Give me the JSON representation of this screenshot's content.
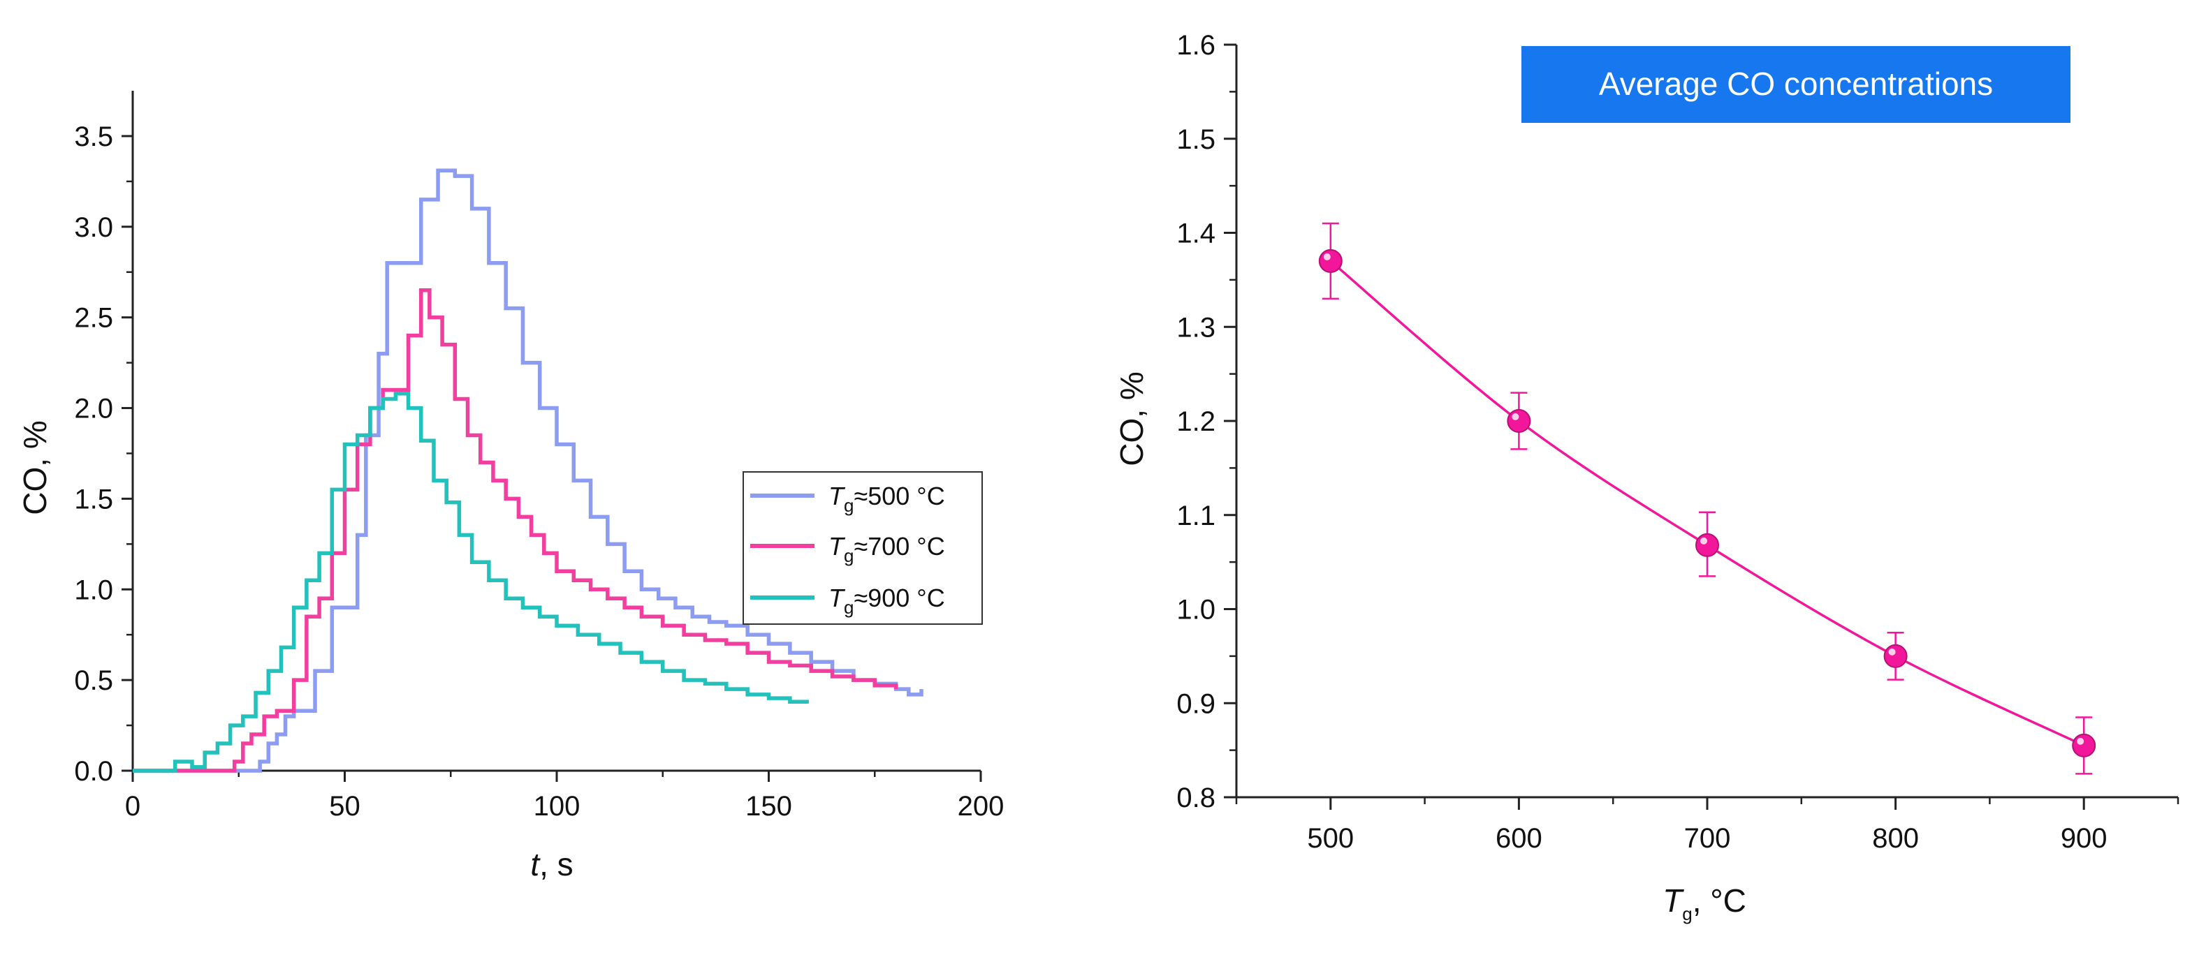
{
  "chart_data": [
    {
      "type": "line",
      "step": true,
      "xlabel_var": "t",
      "xlabel_unit": ", s",
      "ylabel": "CO, %",
      "xlim": [
        0,
        200
      ],
      "ylim": [
        0,
        3.75
      ],
      "x_ticks": [
        0,
        50,
        100,
        150,
        200
      ],
      "x_tick_labels": [
        "0",
        "50",
        "100",
        "150",
        "200"
      ],
      "y_ticks": [
        0.0,
        0.5,
        1.0,
        1.5,
        2.0,
        2.5,
        3.0,
        3.5
      ],
      "y_tick_labels": [
        "0.0",
        "0.5",
        "1.0",
        "1.5",
        "2.0",
        "2.5",
        "3.0",
        "3.5"
      ],
      "legend_position": "right-middle",
      "series": [
        {
          "name": "Tg≈500 °C",
          "legend_var": "T",
          "legend_sub": "g",
          "legend_rest": "≈500 °C",
          "color": "#8c9cf0",
          "x": [
            0,
            28,
            30,
            32,
            34,
            36,
            38,
            40,
            43,
            47,
            50,
            53,
            55,
            58,
            60,
            64,
            68,
            72,
            76,
            80,
            84,
            88,
            92,
            96,
            100,
            104,
            108,
            112,
            116,
            120,
            124,
            128,
            132,
            136,
            140,
            145,
            150,
            155,
            160,
            165,
            170,
            175,
            180,
            183,
            186
          ],
          "y": [
            0,
            0,
            0.05,
            0.15,
            0.2,
            0.3,
            0.33,
            0.33,
            0.55,
            0.9,
            0.9,
            1.3,
            1.85,
            2.3,
            2.8,
            2.8,
            3.15,
            3.31,
            3.28,
            3.1,
            2.8,
            2.55,
            2.25,
            2.0,
            1.8,
            1.6,
            1.4,
            1.25,
            1.1,
            1.0,
            0.95,
            0.9,
            0.85,
            0.82,
            0.8,
            0.75,
            0.7,
            0.65,
            0.6,
            0.55,
            0.5,
            0.48,
            0.45,
            0.42,
            0.45
          ]
        },
        {
          "name": "Tg≈700 °C",
          "legend_var": "T",
          "legend_sub": "g",
          "legend_rest": "≈700 °C",
          "color": "#f23e9f",
          "x": [
            0,
            22,
            24,
            26,
            28,
            31,
            34,
            38,
            41,
            44,
            47,
            50,
            53,
            56,
            59,
            62,
            65,
            68,
            70,
            73,
            76,
            79,
            82,
            85,
            88,
            91,
            94,
            97,
            100,
            104,
            108,
            112,
            116,
            120,
            125,
            130,
            135,
            140,
            145,
            150,
            155,
            160,
            165,
            170,
            175,
            180
          ],
          "y": [
            0,
            0,
            0.05,
            0.15,
            0.2,
            0.3,
            0.33,
            0.5,
            0.85,
            0.95,
            1.2,
            1.55,
            1.8,
            2.0,
            2.1,
            2.1,
            2.4,
            2.65,
            2.5,
            2.35,
            2.05,
            1.85,
            1.7,
            1.6,
            1.5,
            1.4,
            1.3,
            1.2,
            1.1,
            1.05,
            1.0,
            0.95,
            0.9,
            0.85,
            0.8,
            0.75,
            0.72,
            0.7,
            0.65,
            0.6,
            0.58,
            0.55,
            0.52,
            0.5,
            0.47,
            0.45
          ]
        },
        {
          "name": "Tg≈900 °C",
          "legend_var": "T",
          "legend_sub": "g",
          "legend_rest": "≈900 °C",
          "color": "#22c1bb",
          "x": [
            0,
            10,
            14,
            17,
            20,
            23,
            26,
            29,
            32,
            35,
            38,
            41,
            44,
            47,
            50,
            53,
            56,
            59,
            62,
            65,
            68,
            71,
            74,
            77,
            80,
            84,
            88,
            92,
            96,
            100,
            105,
            110,
            115,
            120,
            125,
            130,
            135,
            140,
            145,
            150,
            155,
            159
          ],
          "y": [
            0,
            0.05,
            0.02,
            0.1,
            0.15,
            0.25,
            0.3,
            0.43,
            0.55,
            0.68,
            0.9,
            1.05,
            1.2,
            1.55,
            1.8,
            1.85,
            2.0,
            2.05,
            2.08,
            2.0,
            1.82,
            1.6,
            1.48,
            1.3,
            1.15,
            1.05,
            0.95,
            0.9,
            0.85,
            0.8,
            0.75,
            0.7,
            0.65,
            0.6,
            0.55,
            0.5,
            0.48,
            0.45,
            0.42,
            0.4,
            0.38,
            0.37
          ]
        }
      ]
    },
    {
      "type": "scatter",
      "title_box": "Average CO concentrations",
      "xlabel_var": "T",
      "xlabel_sub": "g",
      "xlabel_unit": ", °C",
      "ylabel": "CO, %",
      "xlim": [
        450,
        950
      ],
      "ylim": [
        0.8,
        1.6
      ],
      "x_ticks": [
        500,
        600,
        700,
        800,
        900
      ],
      "x_tick_labels": [
        "500",
        "600",
        "700",
        "800",
        "900"
      ],
      "y_ticks": [
        0.8,
        0.9,
        1.0,
        1.1,
        1.2,
        1.3,
        1.4,
        1.5,
        1.6
      ],
      "y_tick_labels": [
        "0.8",
        "0.9",
        "1.0",
        "1.1",
        "1.2",
        "1.3",
        "1.4",
        "1.5",
        "1.6"
      ],
      "color": "#f2179a",
      "box_color": "#1677ee",
      "series": [
        {
          "name": "Average CO",
          "x": [
            500,
            600,
            700,
            800,
            900
          ],
          "y": [
            1.37,
            1.2,
            1.068,
            0.95,
            0.855
          ],
          "err_low": [
            1.33,
            1.17,
            1.035,
            0.925,
            0.825
          ],
          "err_high": [
            1.41,
            1.23,
            1.103,
            0.975,
            0.885
          ]
        }
      ],
      "fit_curve": true
    }
  ]
}
